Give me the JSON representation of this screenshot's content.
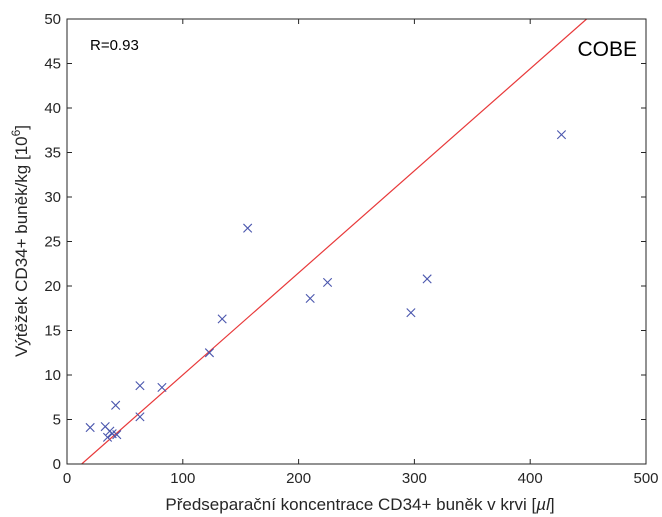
{
  "chart_data": {
    "type": "scatter",
    "title": "",
    "xlabel_text": "Předseparační koncentrace CD34+ buněk v krvi [",
    "xlabel_unit": "µl",
    "xlabel_close": "]",
    "ylabel_text": "Výtěžek CD34+ buněk/kg [10",
    "ylabel_sup": "6",
    "ylabel_close": "]",
    "xlim": [
      0,
      500
    ],
    "ylim": [
      0,
      50
    ],
    "xticks": [
      "0",
      "100",
      "200",
      "300",
      "400",
      "500"
    ],
    "yticks": [
      "0",
      "5",
      "10",
      "15",
      "20",
      "25",
      "30",
      "35",
      "40",
      "45",
      "50"
    ],
    "grid": false,
    "annotations": {
      "r": "R=0.93",
      "label": "COBE"
    },
    "points": [
      {
        "x": 20,
        "y": 4.1
      },
      {
        "x": 33,
        "y": 4.2
      },
      {
        "x": 35,
        "y": 3.0
      },
      {
        "x": 37,
        "y": 3.7
      },
      {
        "x": 39,
        "y": 3.4
      },
      {
        "x": 42,
        "y": 6.6
      },
      {
        "x": 43,
        "y": 3.3
      },
      {
        "x": 63,
        "y": 8.8
      },
      {
        "x": 63,
        "y": 5.3
      },
      {
        "x": 82,
        "y": 8.6
      },
      {
        "x": 123,
        "y": 12.5
      },
      {
        "x": 134,
        "y": 16.3
      },
      {
        "x": 156,
        "y": 26.5
      },
      {
        "x": 210,
        "y": 18.6
      },
      {
        "x": 225,
        "y": 20.4
      },
      {
        "x": 297,
        "y": 17.0
      },
      {
        "x": 311,
        "y": 20.8
      },
      {
        "x": 427,
        "y": 37.0
      }
    ],
    "fit_line": {
      "x": [
        12.7,
        448.7
      ],
      "y": [
        0,
        50
      ]
    },
    "colors": {
      "markers": "#4a56ad",
      "fit_line": "#e8393a",
      "axis": "#262626"
    }
  }
}
